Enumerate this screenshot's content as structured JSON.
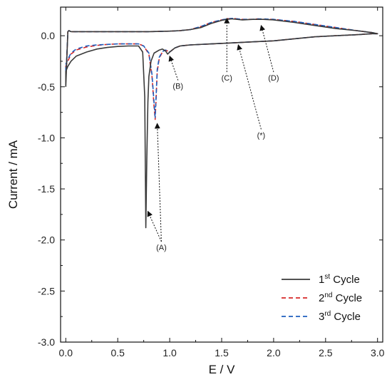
{
  "chart_data": {
    "type": "line",
    "xlabel": "E / V",
    "ylabel": "Current / mA",
    "xlim": [
      -0.05,
      3.05
    ],
    "ylim": [
      -3.0,
      0.28
    ],
    "xticks": [
      "0.0",
      "0.5",
      "1.0",
      "1.5",
      "2.0",
      "2.5",
      "3.0"
    ],
    "yticks": [
      "0.0",
      "-0.5",
      "-1.0",
      "-1.5",
      "-2.0",
      "-2.5",
      "-3.0"
    ],
    "grid": false,
    "legend_position": "bottom-right",
    "series": [
      {
        "name_base": "1",
        "name_sup": "st",
        "name_rest": " Cycle",
        "color": "#3a3a3a",
        "dash": "none",
        "x": [
          0.0,
          0.0,
          0.02,
          0.05,
          0.1,
          0.2,
          0.3,
          0.4,
          0.5,
          0.6,
          0.7,
          0.74,
          0.76,
          0.77,
          0.78,
          0.79,
          0.8,
          0.82,
          0.85,
          0.9,
          0.93,
          0.96,
          0.98,
          1.0,
          1.05,
          1.1,
          1.2,
          1.4,
          1.6,
          1.8,
          2.0,
          2.2,
          2.4,
          2.6,
          2.8,
          2.95,
          3.0,
          2.95,
          2.8,
          2.6,
          2.4,
          2.2,
          2.0,
          1.9,
          1.85,
          1.8,
          1.7,
          1.6,
          1.55,
          1.5,
          1.4,
          1.3,
          1.2,
          1.1,
          1.0,
          0.8,
          0.6,
          0.4,
          0.2,
          0.1,
          0.05,
          0.03,
          0.02,
          0.0
        ],
        "y": [
          -0.5,
          -0.35,
          -0.3,
          -0.25,
          -0.2,
          -0.16,
          -0.13,
          -0.115,
          -0.105,
          -0.1,
          -0.1,
          -0.16,
          -0.6,
          -1.88,
          -1.2,
          -0.65,
          -0.4,
          -0.25,
          -0.17,
          -0.14,
          -0.13,
          -0.15,
          -0.18,
          -0.16,
          -0.12,
          -0.1,
          -0.09,
          -0.08,
          -0.07,
          -0.06,
          -0.05,
          -0.03,
          -0.01,
          0.0,
          0.01,
          0.02,
          0.02,
          0.03,
          0.05,
          0.07,
          0.1,
          0.13,
          0.155,
          0.16,
          0.16,
          0.16,
          0.155,
          0.165,
          0.16,
          0.15,
          0.12,
          0.08,
          0.06,
          0.05,
          0.045,
          0.04,
          0.04,
          0.04,
          0.04,
          0.04,
          0.04,
          0.05,
          0.04,
          -0.5
        ]
      },
      {
        "name_base": "2",
        "name_sup": "nd",
        "name_rest": " Cycle",
        "color": "#d62728",
        "dash": "6,4",
        "x": [
          0.0,
          0.0,
          0.02,
          0.05,
          0.1,
          0.2,
          0.3,
          0.4,
          0.5,
          0.6,
          0.7,
          0.75,
          0.8,
          0.83,
          0.85,
          0.86,
          0.87,
          0.88,
          0.9,
          0.93,
          0.96,
          0.98,
          1.0,
          1.05,
          1.1,
          1.2,
          1.4,
          1.6,
          1.8,
          2.0,
          2.2,
          2.4,
          2.6,
          2.8,
          2.95,
          3.0,
          2.95,
          2.8,
          2.6,
          2.4,
          2.2,
          2.0,
          1.9,
          1.85,
          1.8,
          1.7,
          1.6,
          1.55,
          1.5,
          1.4,
          1.3,
          1.2,
          1.1,
          1.0,
          0.8,
          0.6,
          0.4,
          0.2,
          0.1,
          0.05,
          0.03,
          0.02,
          0.0
        ],
        "y": [
          -0.45,
          -0.3,
          -0.25,
          -0.18,
          -0.14,
          -0.11,
          -0.095,
          -0.085,
          -0.08,
          -0.08,
          -0.08,
          -0.1,
          -0.18,
          -0.4,
          -0.7,
          -0.82,
          -0.6,
          -0.35,
          -0.22,
          -0.16,
          -0.14,
          -0.15,
          -0.16,
          -0.12,
          -0.1,
          -0.09,
          -0.08,
          -0.07,
          -0.06,
          -0.05,
          -0.03,
          -0.01,
          0.0,
          0.01,
          0.02,
          0.02,
          0.03,
          0.05,
          0.08,
          0.11,
          0.14,
          0.16,
          0.16,
          0.165,
          0.16,
          0.16,
          0.17,
          0.165,
          0.155,
          0.13,
          0.09,
          0.06,
          0.05,
          0.045,
          0.04,
          0.04,
          0.04,
          0.04,
          0.04,
          0.04,
          0.05,
          0.04,
          -0.45
        ]
      },
      {
        "name_base": "3",
        "name_sup": "rd",
        "name_rest": " Cycle",
        "color": "#1f5fbf",
        "dash": "6,4",
        "x": [
          0.0,
          0.0,
          0.02,
          0.05,
          0.1,
          0.2,
          0.3,
          0.4,
          0.5,
          0.6,
          0.7,
          0.75,
          0.8,
          0.83,
          0.85,
          0.86,
          0.87,
          0.88,
          0.9,
          0.93,
          0.96,
          0.98,
          1.0,
          1.05,
          1.1,
          1.2,
          1.4,
          1.6,
          1.8,
          2.0,
          2.2,
          2.4,
          2.6,
          2.8,
          2.95,
          3.0,
          2.95,
          2.8,
          2.6,
          2.4,
          2.2,
          2.0,
          1.9,
          1.85,
          1.8,
          1.7,
          1.6,
          1.55,
          1.5,
          1.4,
          1.3,
          1.2,
          1.1,
          1.0,
          0.8,
          0.6,
          0.4,
          0.2,
          0.1,
          0.05,
          0.03,
          0.02,
          0.0
        ],
        "y": [
          -0.42,
          -0.28,
          -0.23,
          -0.17,
          -0.13,
          -0.1,
          -0.09,
          -0.085,
          -0.08,
          -0.08,
          -0.08,
          -0.1,
          -0.17,
          -0.38,
          -0.66,
          -0.8,
          -0.58,
          -0.33,
          -0.21,
          -0.155,
          -0.14,
          -0.15,
          -0.16,
          -0.12,
          -0.1,
          -0.09,
          -0.08,
          -0.07,
          -0.06,
          -0.05,
          -0.03,
          -0.01,
          0.0,
          0.01,
          0.02,
          0.02,
          0.03,
          0.05,
          0.08,
          0.11,
          0.14,
          0.16,
          0.165,
          0.165,
          0.16,
          0.16,
          0.17,
          0.165,
          0.155,
          0.13,
          0.09,
          0.06,
          0.05,
          0.045,
          0.04,
          0.04,
          0.04,
          0.04,
          0.04,
          0.04,
          0.05,
          0.04,
          -0.42
        ]
      }
    ],
    "annotations": [
      {
        "label": "(A)",
        "text_at": [
          0.92,
          -2.1
        ],
        "arrows_to": [
          [
            0.79,
            -1.72
          ],
          [
            0.88,
            -0.86
          ]
        ]
      },
      {
        "label": "(B)",
        "text_at": [
          1.08,
          -0.52
        ],
        "arrows_to": [
          [
            1.0,
            -0.2
          ]
        ]
      },
      {
        "label": "(C)",
        "text_at": [
          1.55,
          -0.44
        ],
        "arrows_to": [
          [
            1.55,
            0.17
          ]
        ]
      },
      {
        "label": "(D)",
        "text_at": [
          2.0,
          -0.44
        ],
        "arrows_to": [
          [
            1.88,
            0.1
          ]
        ]
      },
      {
        "label": "(*)",
        "text_at": [
          1.88,
          -1.0
        ],
        "arrows_to": [
          [
            1.66,
            -0.09
          ]
        ]
      }
    ]
  }
}
